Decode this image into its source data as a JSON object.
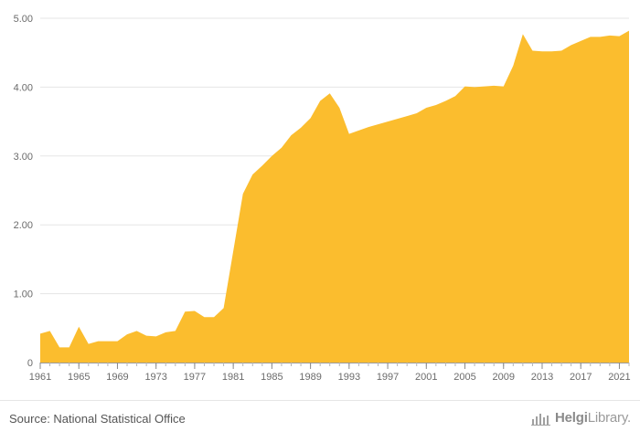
{
  "chart_data": {
    "type": "area",
    "title": "",
    "xlabel": "",
    "ylabel": "",
    "color": "#fbbd2e",
    "grid": true,
    "ylim": [
      0,
      5
    ],
    "y_ticks": [
      "0",
      "1.00",
      "2.00",
      "3.00",
      "4.00",
      "5.00"
    ],
    "y_tick_values": [
      0,
      1,
      2,
      3,
      4,
      5
    ],
    "x_ticks": [
      "1961",
      "1965",
      "1969",
      "1973",
      "1977",
      "1981",
      "1985",
      "1989",
      "1993",
      "1997",
      "2001",
      "2005",
      "2009",
      "2013",
      "2017",
      "2021"
    ],
    "x": [
      1961,
      1962,
      1963,
      1964,
      1965,
      1966,
      1967,
      1968,
      1969,
      1970,
      1971,
      1972,
      1973,
      1974,
      1975,
      1976,
      1977,
      1978,
      1979,
      1980,
      1981,
      1982,
      1983,
      1984,
      1985,
      1986,
      1987,
      1988,
      1989,
      1990,
      1991,
      1992,
      1993,
      1994,
      1995,
      1996,
      1997,
      1998,
      1999,
      2000,
      2001,
      2002,
      2003,
      2004,
      2005,
      2006,
      2007,
      2008,
      2009,
      2010,
      2011,
      2012,
      2013,
      2014,
      2015,
      2016,
      2017,
      2018,
      2019,
      2020,
      2021,
      2022
    ],
    "values": [
      0.42,
      0.46,
      0.22,
      0.22,
      0.52,
      0.27,
      0.31,
      0.31,
      0.31,
      0.41,
      0.46,
      0.39,
      0.38,
      0.44,
      0.46,
      0.74,
      0.75,
      0.66,
      0.66,
      0.79,
      1.62,
      2.45,
      2.73,
      2.86,
      3.0,
      3.12,
      3.3,
      3.41,
      3.55,
      3.8,
      3.91,
      3.7,
      3.32,
      3.37,
      3.42,
      3.46,
      3.5,
      3.54,
      3.58,
      3.62,
      3.7,
      3.74,
      3.8,
      3.87,
      4.01,
      4.0,
      4.01,
      4.02,
      4.01,
      4.31,
      4.77,
      4.53,
      4.52,
      4.52,
      4.53,
      4.61,
      4.67,
      4.73,
      4.73,
      4.75,
      4.74,
      4.82
    ]
  },
  "footer": {
    "source": "Source: National Statistical Office",
    "brand_a": "Helgi",
    "brand_b": "Library."
  }
}
